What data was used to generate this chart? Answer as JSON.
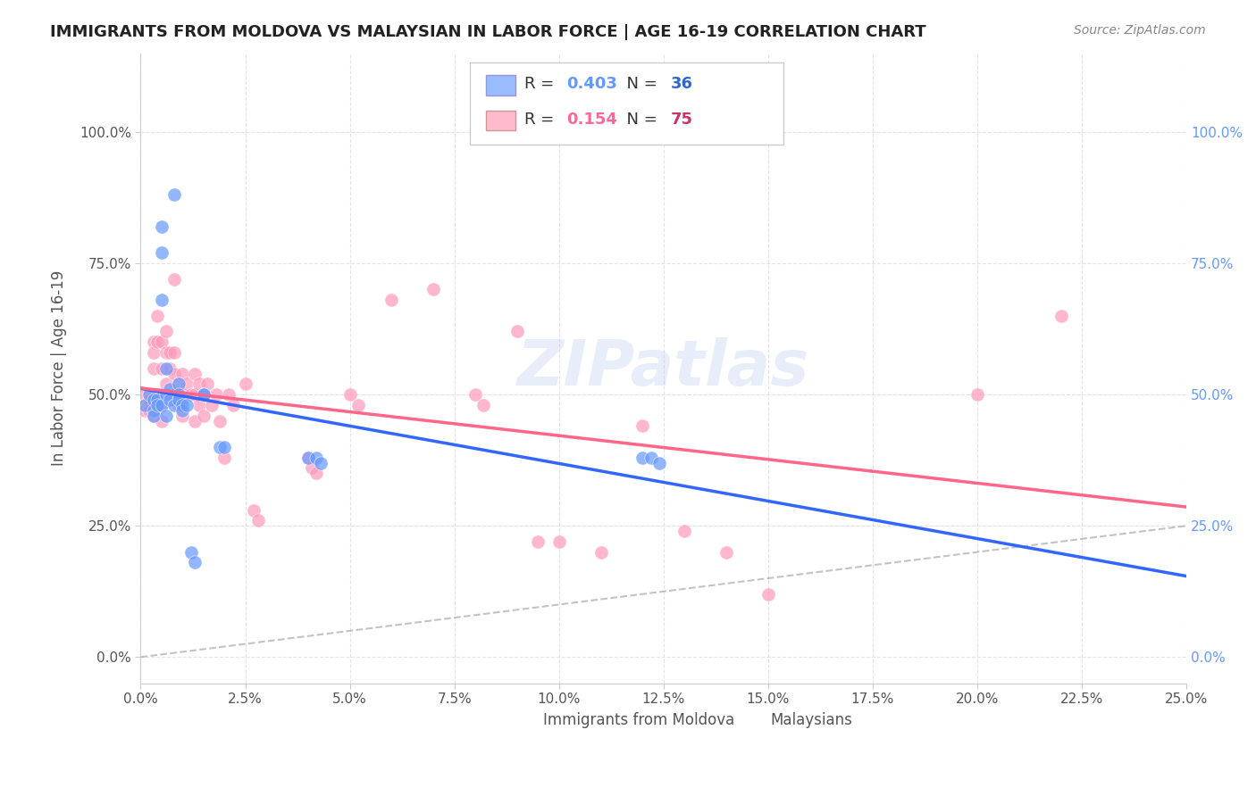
{
  "title": "IMMIGRANTS FROM MOLDOVA VS MALAYSIAN IN LABOR FORCE | AGE 16-19 CORRELATION CHART",
  "source": "Source: ZipAtlas.com",
  "ylabel": "In Labor Force | Age 16-19",
  "r_moldova": 0.403,
  "n_moldova": 36,
  "r_malaysian": 0.154,
  "n_malaysian": 75,
  "blue_color": "#6699FF",
  "pink_color": "#FF99BB",
  "blue_legend_color": "#99BBFF",
  "pink_legend_color": "#FFBBCC",
  "xlim": [
    0.0,
    0.25
  ],
  "ylim": [
    -0.05,
    1.15
  ],
  "xticks": [
    0.0,
    0.025,
    0.05,
    0.075,
    0.1,
    0.125,
    0.15,
    0.175,
    0.2,
    0.225,
    0.25
  ],
  "yticks": [
    0.0,
    0.25,
    0.5,
    0.75,
    1.0
  ],
  "watermark": "ZIPatlas",
  "scatter_size": 120,
  "blue_scatter": {
    "x": [
      0.001,
      0.002,
      0.003,
      0.003,
      0.003,
      0.004,
      0.004,
      0.005,
      0.005,
      0.005,
      0.005,
      0.006,
      0.006,
      0.006,
      0.007,
      0.007,
      0.008,
      0.008,
      0.009,
      0.009,
      0.009,
      0.01,
      0.01,
      0.011,
      0.012,
      0.013,
      0.015,
      0.015,
      0.019,
      0.02,
      0.04,
      0.042,
      0.043,
      0.12,
      0.122,
      0.124
    ],
    "y": [
      0.48,
      0.5,
      0.49,
      0.47,
      0.46,
      0.49,
      0.48,
      0.82,
      0.77,
      0.68,
      0.48,
      0.55,
      0.5,
      0.46,
      0.51,
      0.49,
      0.88,
      0.48,
      0.52,
      0.5,
      0.49,
      0.48,
      0.47,
      0.48,
      0.2,
      0.18,
      0.5,
      0.5,
      0.4,
      0.4,
      0.38,
      0.38,
      0.37,
      0.38,
      0.38,
      0.37
    ]
  },
  "pink_scatter": {
    "x": [
      0.001,
      0.001,
      0.001,
      0.002,
      0.002,
      0.002,
      0.002,
      0.003,
      0.003,
      0.003,
      0.003,
      0.003,
      0.004,
      0.004,
      0.004,
      0.004,
      0.005,
      0.005,
      0.005,
      0.005,
      0.005,
      0.006,
      0.006,
      0.006,
      0.006,
      0.007,
      0.007,
      0.007,
      0.008,
      0.008,
      0.008,
      0.008,
      0.009,
      0.009,
      0.01,
      0.01,
      0.01,
      0.011,
      0.012,
      0.013,
      0.013,
      0.013,
      0.014,
      0.014,
      0.015,
      0.015,
      0.016,
      0.017,
      0.018,
      0.019,
      0.02,
      0.021,
      0.022,
      0.025,
      0.027,
      0.028,
      0.04,
      0.041,
      0.042,
      0.05,
      0.052,
      0.06,
      0.07,
      0.08,
      0.082,
      0.09,
      0.095,
      0.1,
      0.11,
      0.12,
      0.13,
      0.14,
      0.15,
      0.2,
      0.22
    ],
    "y": [
      0.5,
      0.48,
      0.47,
      0.5,
      0.49,
      0.48,
      0.47,
      0.6,
      0.58,
      0.55,
      0.5,
      0.46,
      0.65,
      0.6,
      0.5,
      0.47,
      0.6,
      0.55,
      0.5,
      0.48,
      0.45,
      0.62,
      0.58,
      0.52,
      0.5,
      0.58,
      0.55,
      0.5,
      0.72,
      0.58,
      0.54,
      0.5,
      0.52,
      0.48,
      0.54,
      0.5,
      0.46,
      0.52,
      0.5,
      0.54,
      0.5,
      0.45,
      0.52,
      0.48,
      0.5,
      0.46,
      0.52,
      0.48,
      0.5,
      0.45,
      0.38,
      0.5,
      0.48,
      0.52,
      0.28,
      0.26,
      0.38,
      0.36,
      0.35,
      0.5,
      0.48,
      0.68,
      0.7,
      0.5,
      0.48,
      0.62,
      0.22,
      0.22,
      0.2,
      0.44,
      0.24,
      0.2,
      0.12,
      0.5,
      0.65
    ]
  }
}
